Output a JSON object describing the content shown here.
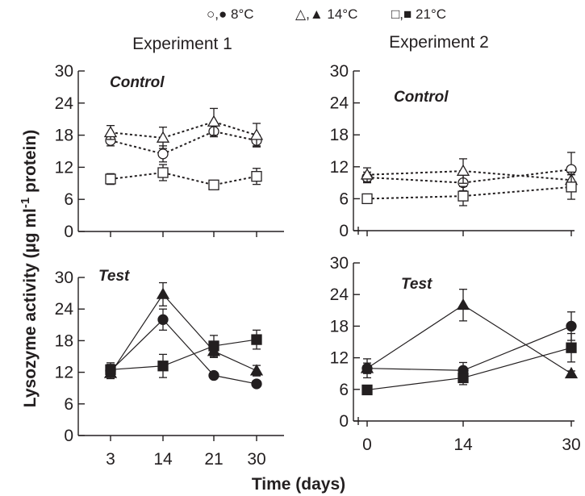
{
  "legend": {
    "items": [
      {
        "open": "○",
        "filled": "●",
        "label": "8°C"
      },
      {
        "open": "△",
        "filled": "▲",
        "label": "14°C"
      },
      {
        "open": "□",
        "filled": "■",
        "label": "21°C"
      }
    ]
  },
  "colors": {
    "ink": "#231f20",
    "background": "#ffffff"
  },
  "ylabel": "Lysozyme activity (µg ml",
  "ylabel_sup": "-1",
  "ylabel_tail": " protein)",
  "xlabel": "Time (days)",
  "chart_data": [
    {
      "type": "line",
      "column_title": "Experiment 1",
      "panel_label": "Control",
      "line_style": "dotted",
      "marker_fill": "open",
      "x": [
        3,
        14,
        21,
        30
      ],
      "xticks": [
        "3",
        "14",
        "21",
        "30"
      ],
      "yticks": [
        0,
        6,
        12,
        18,
        24,
        30
      ],
      "ylim": [
        0,
        30
      ],
      "series": [
        {
          "name": "8°C",
          "marker": "circle",
          "values": [
            17.0,
            14.5,
            18.7,
            17.0
          ],
          "errors": [
            1.0,
            1.5,
            1.0,
            1.0
          ]
        },
        {
          "name": "14°C",
          "marker": "triangle",
          "values": [
            18.5,
            17.5,
            20.5,
            18.0
          ],
          "errors": [
            1.3,
            2.0,
            2.5,
            2.2
          ]
        },
        {
          "name": "21°C",
          "marker": "square",
          "values": [
            9.8,
            11.0,
            8.7,
            10.3
          ],
          "errors": [
            1.0,
            1.5,
            0.5,
            1.5
          ]
        }
      ]
    },
    {
      "type": "line",
      "column_title": "Experiment 2",
      "panel_label": "Control",
      "line_style": "dotted",
      "marker_fill": "open",
      "x": [
        0,
        14,
        30
      ],
      "xticks": [
        "0",
        "14",
        "30"
      ],
      "yticks": [
        0,
        6,
        12,
        18,
        24,
        30
      ],
      "ylim": [
        0,
        30
      ],
      "series": [
        {
          "name": "8°C",
          "marker": "circle",
          "values": [
            10.0,
            9.0,
            11.5
          ],
          "errors": [
            1.0,
            1.5,
            3.2
          ]
        },
        {
          "name": "14°C",
          "marker": "triangle",
          "values": [
            10.5,
            11.2,
            9.5
          ],
          "errors": [
            1.3,
            2.3,
            1.5
          ]
        },
        {
          "name": "21°C",
          "marker": "square",
          "values": [
            6.0,
            6.5,
            8.2
          ],
          "errors": [
            0.5,
            1.8,
            2.3
          ]
        }
      ]
    },
    {
      "type": "line",
      "column_title": "",
      "panel_label": "Test",
      "line_style": "solid",
      "marker_fill": "filled",
      "x": [
        3,
        14,
        21,
        30
      ],
      "xticks": [
        "3",
        "14",
        "21",
        "30"
      ],
      "yticks": [
        0,
        6,
        12,
        18,
        24,
        30
      ],
      "ylim": [
        0,
        30
      ],
      "series": [
        {
          "name": "8°C",
          "marker": "circle",
          "values": [
            12.3,
            22.0,
            11.4,
            9.8
          ],
          "errors": [
            1.5,
            2.0,
            0.3,
            0.3
          ]
        },
        {
          "name": "14°C",
          "marker": "triangle",
          "values": [
            11.8,
            26.8,
            16.0,
            12.3
          ],
          "errors": [
            1.0,
            2.2,
            1.2,
            1.0
          ]
        },
        {
          "name": "21°C",
          "marker": "square",
          "values": [
            12.5,
            13.2,
            17.0,
            18.2
          ],
          "errors": [
            1.0,
            2.2,
            2.0,
            1.8
          ]
        }
      ]
    },
    {
      "type": "line",
      "column_title": "",
      "panel_label": "Test",
      "line_style": "solid",
      "marker_fill": "filled",
      "x": [
        0,
        14,
        30
      ],
      "xticks": [
        "0",
        "14",
        "30"
      ],
      "yticks": [
        0,
        6,
        12,
        18,
        24,
        30
      ],
      "ylim": [
        0,
        30
      ],
      "series": [
        {
          "name": "8°C",
          "marker": "circle",
          "values": [
            10.0,
            9.6,
            18.0
          ],
          "errors": [
            1.8,
            1.5,
            2.7
          ]
        },
        {
          "name": "14°C",
          "marker": "triangle",
          "values": [
            10.0,
            22.0,
            9.0
          ],
          "errors": [
            1.0,
            3.0,
            0.5
          ]
        },
        {
          "name": "21°C",
          "marker": "square",
          "values": [
            5.9,
            8.2,
            13.9
          ],
          "errors": [
            0.3,
            1.3,
            2.7
          ]
        }
      ]
    }
  ]
}
